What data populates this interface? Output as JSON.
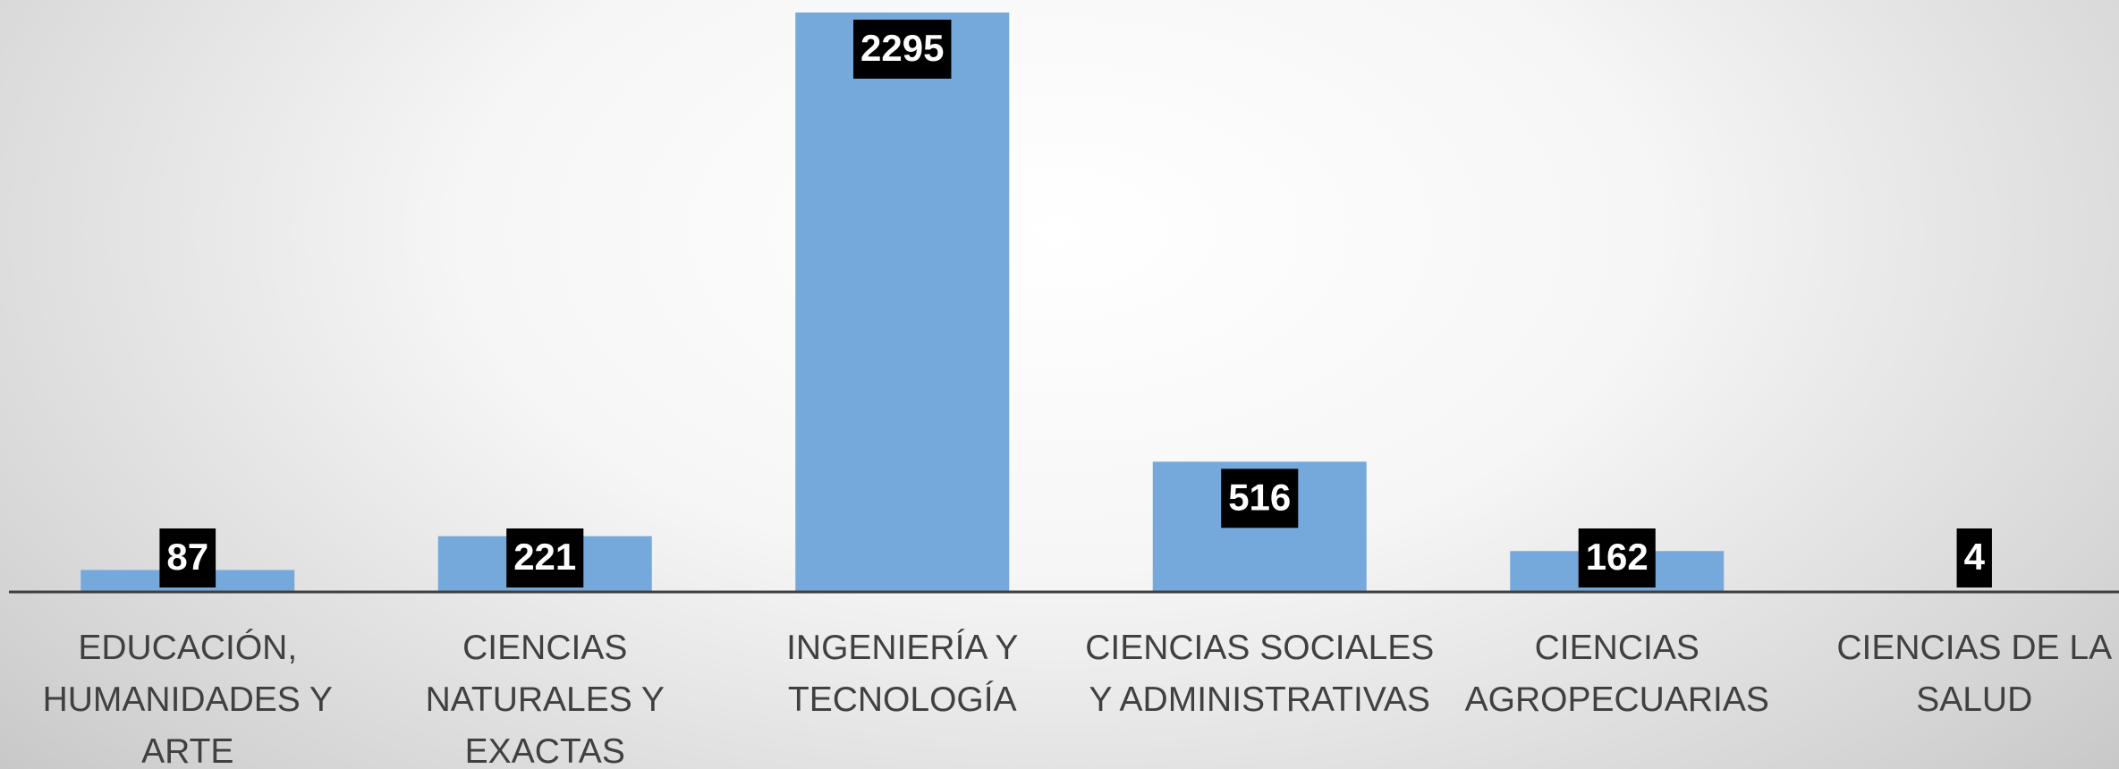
{
  "chart_data": {
    "type": "bar",
    "categories": [
      "EDUCACIÓN, HUMANIDADES Y ARTE",
      "CIENCIAS NATURALES Y EXACTAS",
      "INGENIERÍA Y TECNOLOGÍA",
      "CIENCIAS SOCIALES Y ADMINISTRATIVAS",
      "CIENCIAS AGROPECUARIAS",
      "CIENCIAS DE LA SALUD"
    ],
    "values": [
      87,
      221,
      2295,
      516,
      162,
      4
    ],
    "color": "#75a9db"
  }
}
